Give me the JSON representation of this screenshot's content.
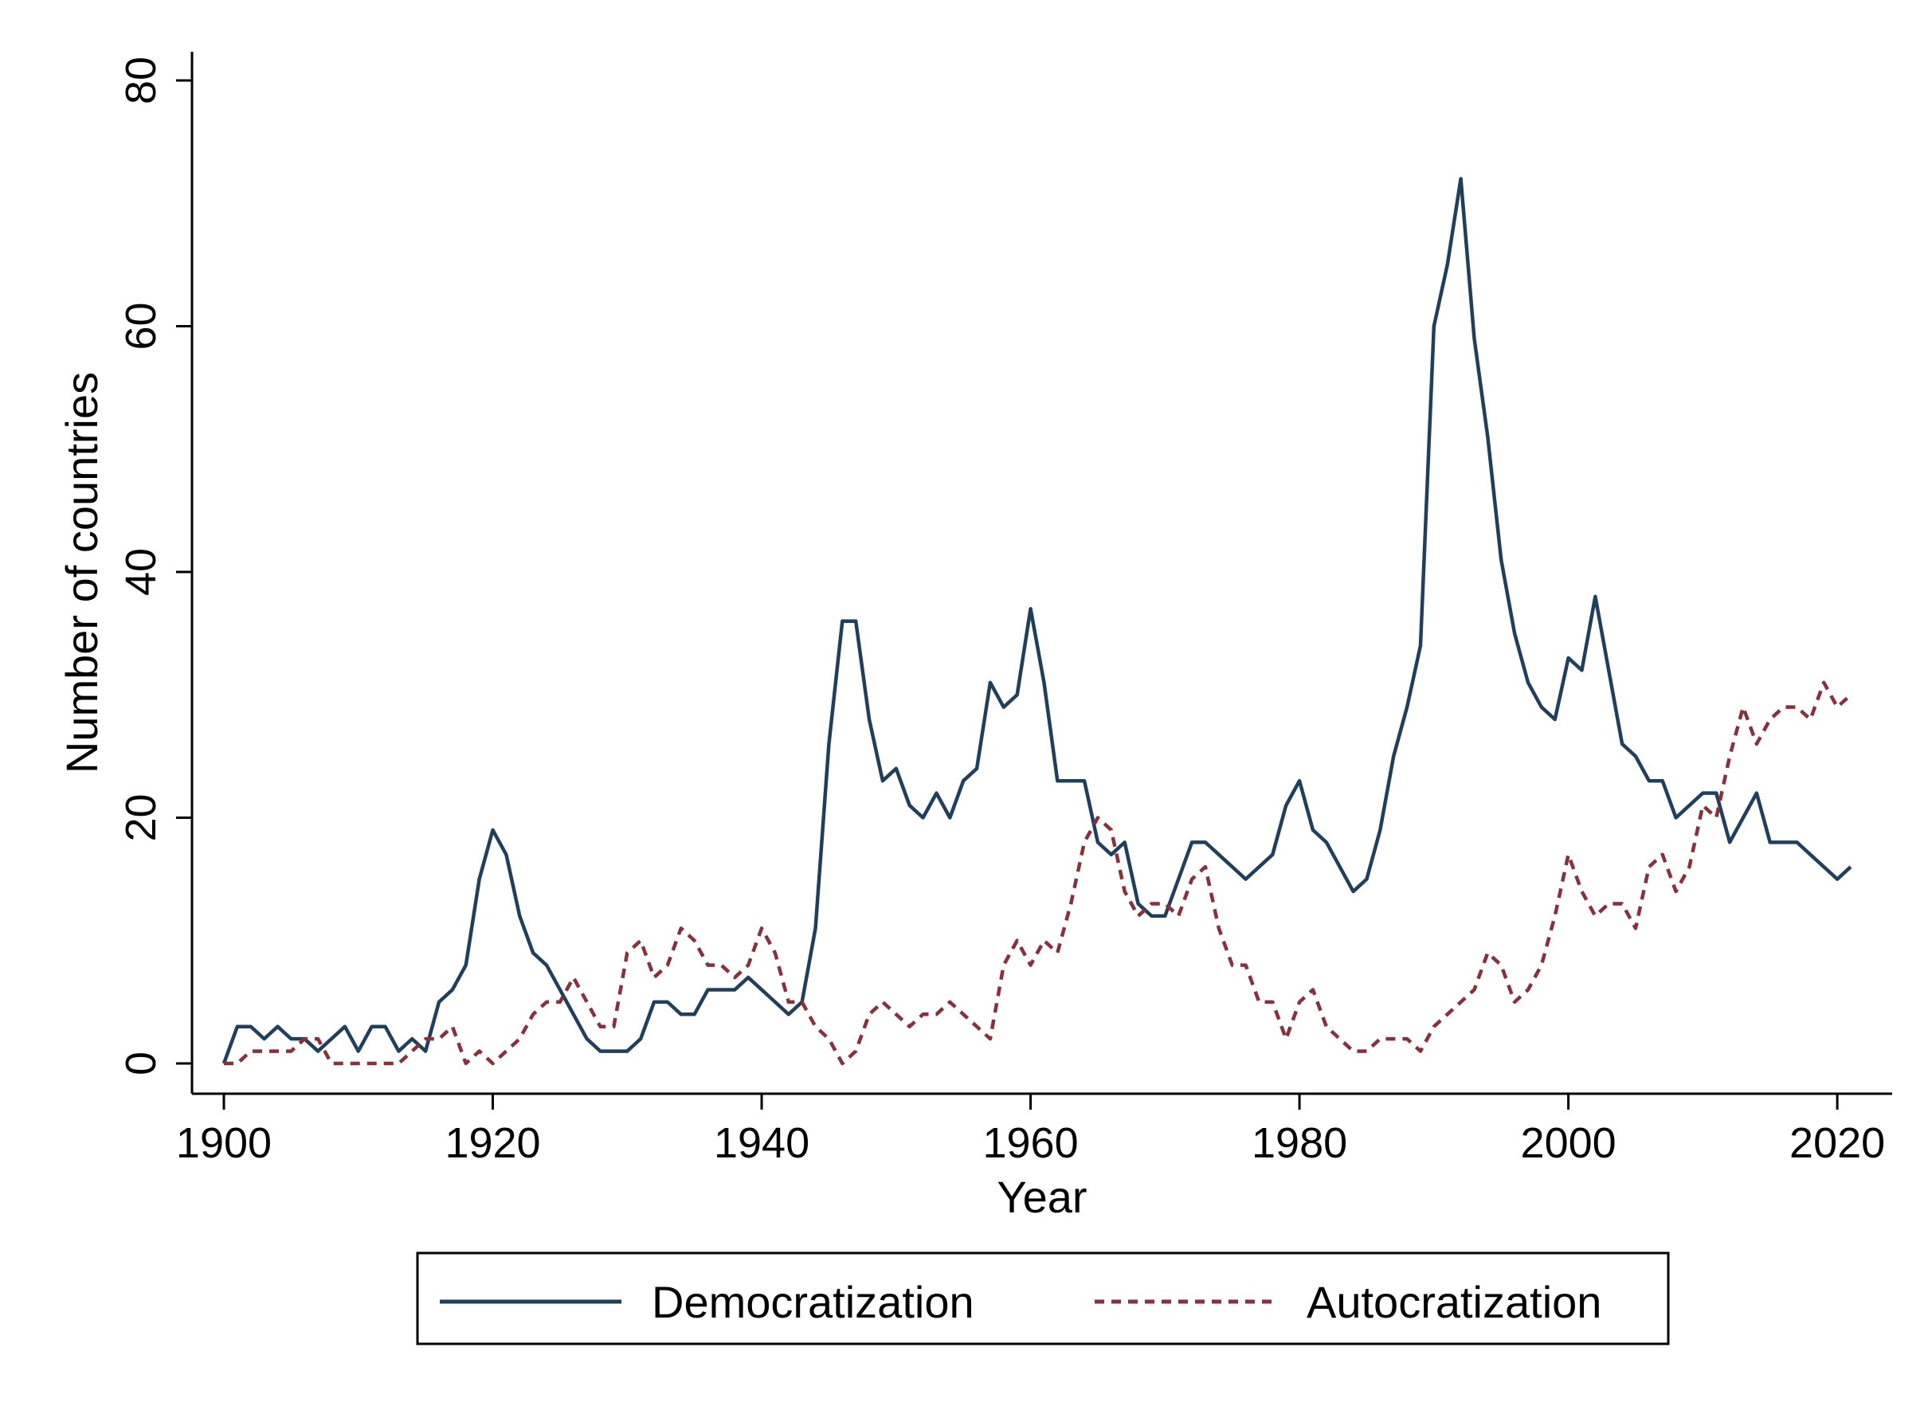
{
  "chart_data": {
    "type": "line",
    "xlabel": "Year",
    "ylabel": "Number of countries",
    "xlim": [
      1900,
      2021
    ],
    "ylim": [
      0,
      80
    ],
    "x_ticks": [
      "1900",
      "1920",
      "1940",
      "1960",
      "1980",
      "2000",
      "2020"
    ],
    "y_ticks": [
      "0",
      "20",
      "40",
      "60",
      "80"
    ],
    "legend_position": "bottom",
    "grid": false,
    "x": [
      1900,
      1901,
      1902,
      1903,
      1904,
      1905,
      1906,
      1907,
      1908,
      1909,
      1910,
      1911,
      1912,
      1913,
      1914,
      1915,
      1916,
      1917,
      1918,
      1919,
      1920,
      1921,
      1922,
      1923,
      1924,
      1925,
      1926,
      1927,
      1928,
      1929,
      1930,
      1931,
      1932,
      1933,
      1934,
      1935,
      1936,
      1937,
      1938,
      1939,
      1940,
      1941,
      1942,
      1943,
      1944,
      1945,
      1946,
      1947,
      1948,
      1949,
      1950,
      1951,
      1952,
      1953,
      1954,
      1955,
      1956,
      1957,
      1958,
      1959,
      1960,
      1961,
      1962,
      1963,
      1964,
      1965,
      1966,
      1967,
      1968,
      1969,
      1970,
      1971,
      1972,
      1973,
      1974,
      1975,
      1976,
      1977,
      1978,
      1979,
      1980,
      1981,
      1982,
      1983,
      1984,
      1985,
      1986,
      1987,
      1988,
      1989,
      1990,
      1991,
      1992,
      1993,
      1994,
      1995,
      1996,
      1997,
      1998,
      1999,
      2000,
      2001,
      2002,
      2003,
      2004,
      2005,
      2006,
      2007,
      2008,
      2009,
      2010,
      2011,
      2012,
      2013,
      2014,
      2015,
      2016,
      2017,
      2018,
      2019,
      2020,
      2021
    ],
    "series": [
      {
        "name": "Democratization",
        "color": "#1f3f5f",
        "dash": "solid",
        "values": [
          0,
          3,
          3,
          2,
          3,
          2,
          2,
          1,
          2,
          3,
          1,
          3,
          3,
          1,
          2,
          1,
          5,
          6,
          8,
          15,
          19,
          17,
          12,
          9,
          8,
          6,
          4,
          2,
          1,
          1,
          1,
          2,
          5,
          5,
          4,
          4,
          6,
          6,
          6,
          7,
          6,
          5,
          4,
          5,
          11,
          26,
          36,
          36,
          28,
          23,
          24,
          21,
          20,
          22,
          20,
          23,
          24,
          31,
          29,
          30,
          37,
          31,
          23,
          23,
          23,
          18,
          17,
          18,
          13,
          12,
          12,
          15,
          18,
          18,
          17,
          16,
          15,
          16,
          17,
          21,
          23,
          19,
          18,
          16,
          14,
          15,
          19,
          25,
          29,
          34,
          60,
          65,
          72,
          59,
          51,
          41,
          35,
          31,
          29,
          28,
          33,
          32,
          38,
          32,
          26,
          25,
          23,
          23,
          20,
          21,
          22,
          22,
          18,
          20,
          22,
          18,
          18,
          18,
          17,
          16,
          15,
          16
        ]
      },
      {
        "name": "Autocratization",
        "color": "#8c2f39",
        "dash": "dashed",
        "values": [
          0,
          0,
          1,
          1,
          1,
          1,
          2,
          2,
          0,
          0,
          0,
          0,
          0,
          0,
          1,
          2,
          2,
          3,
          0,
          1,
          0,
          1,
          2,
          4,
          5,
          5,
          7,
          5,
          3,
          3,
          9,
          10,
          7,
          8,
          11,
          10,
          8,
          8,
          7,
          8,
          11,
          9,
          5,
          5,
          3,
          2,
          0,
          1,
          4,
          5,
          4,
          3,
          4,
          4,
          5,
          4,
          3,
          2,
          8,
          10,
          8,
          10,
          9,
          13,
          18,
          20,
          19,
          14,
          12,
          13,
          13,
          12,
          15,
          16,
          11,
          8,
          8,
          5,
          5,
          2,
          5,
          6,
          3,
          2,
          1,
          1,
          2,
          2,
          2,
          1,
          3,
          4,
          5,
          6,
          9,
          8,
          5,
          6,
          8,
          12,
          17,
          14,
          12,
          13,
          13,
          11,
          16,
          17,
          14,
          16,
          21,
          20,
          25,
          29,
          26,
          28,
          29,
          29,
          28,
          31,
          29,
          30
        ]
      }
    ]
  }
}
